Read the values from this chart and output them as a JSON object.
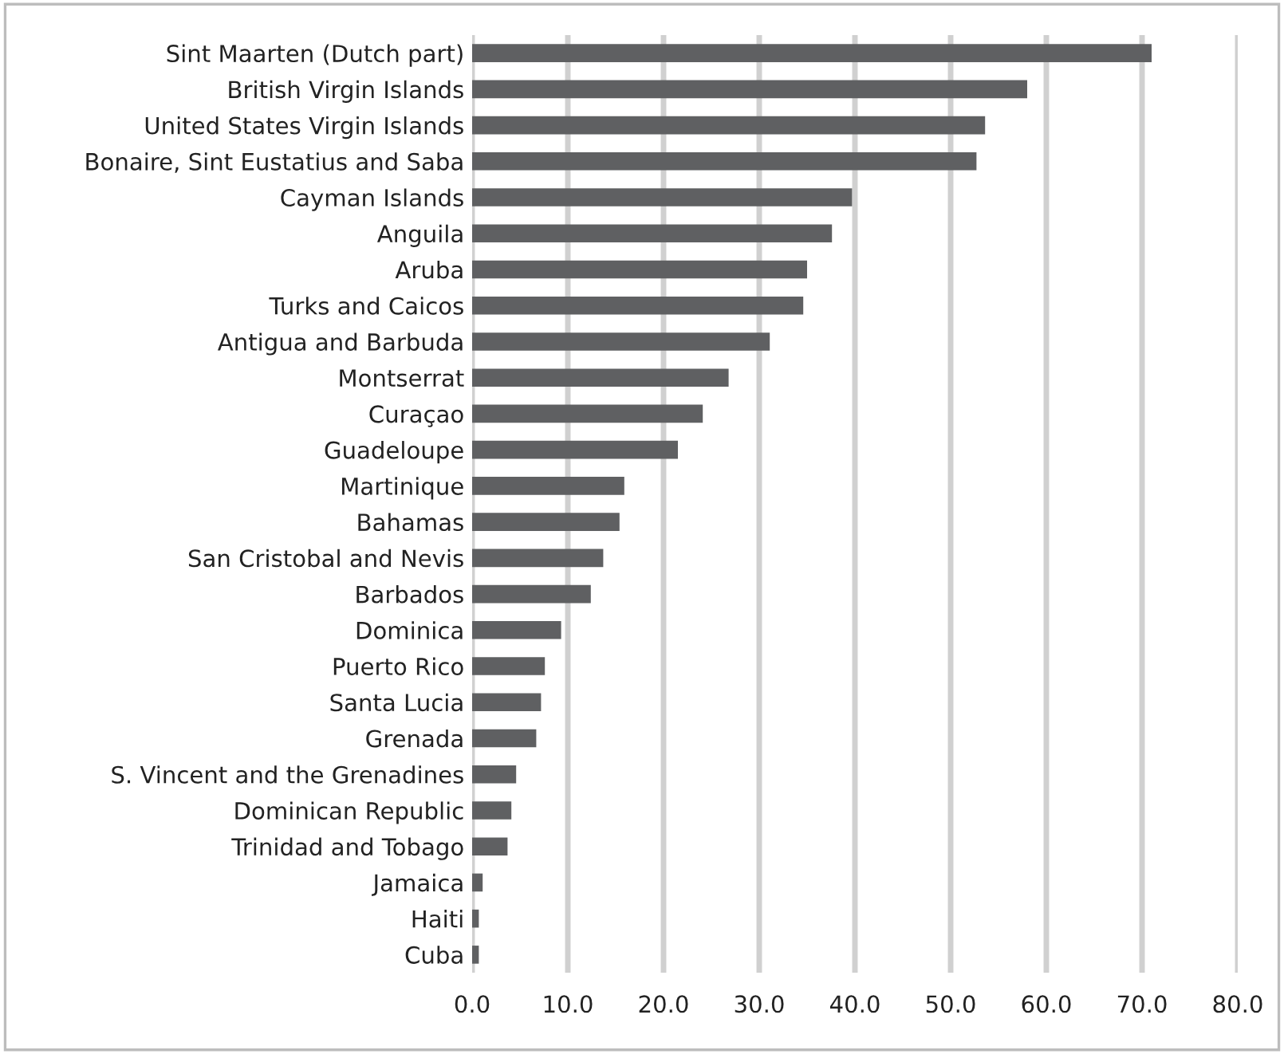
{
  "chart_data": {
    "type": "bar",
    "orientation": "horizontal",
    "color": "#5f6062",
    "categories": [
      "Sint Maarten (Dutch part)",
      "British Virgin Islands",
      "United States Virgin Islands",
      "Bonaire, Sint Eustatius and Saba",
      "Cayman Islands",
      "Anguila",
      "Aruba",
      "Turks and Caicos",
      "Antigua and Barbuda",
      "Montserrat",
      "Curaçao",
      "Guadeloupe",
      "Martinique",
      "Bahamas",
      "San Cristobal and Nevis",
      "Barbados",
      "Dominica",
      "Puerto Rico",
      "Santa Lucia",
      "Grenada",
      "S. Vincent and the Grenadines",
      "Dominican Republic",
      "Trinidad and Tobago",
      "Jamaica",
      "Haiti",
      "Cuba"
    ],
    "values": [
      71.0,
      58.0,
      53.6,
      52.7,
      39.7,
      37.6,
      35.0,
      34.6,
      31.1,
      26.8,
      24.1,
      21.5,
      15.9,
      15.4,
      13.7,
      12.4,
      9.3,
      7.6,
      7.2,
      6.7,
      4.6,
      4.1,
      3.7,
      1.1,
      0.7,
      0.7
    ],
    "xlim": [
      0,
      80
    ],
    "xticks": [
      {
        "value": 0,
        "label": "0.0"
      },
      {
        "value": 10,
        "label": "10.0"
      },
      {
        "value": 20,
        "label": "20.0"
      },
      {
        "value": 30,
        "label": "30.0"
      },
      {
        "value": 40,
        "label": "40.0"
      },
      {
        "value": 50,
        "label": "50.0"
      },
      {
        "value": 60,
        "label": "60.0"
      },
      {
        "value": 70,
        "label": "70.0"
      },
      {
        "value": 80,
        "label": "80.0"
      }
    ],
    "grid": "x",
    "legend": false
  }
}
